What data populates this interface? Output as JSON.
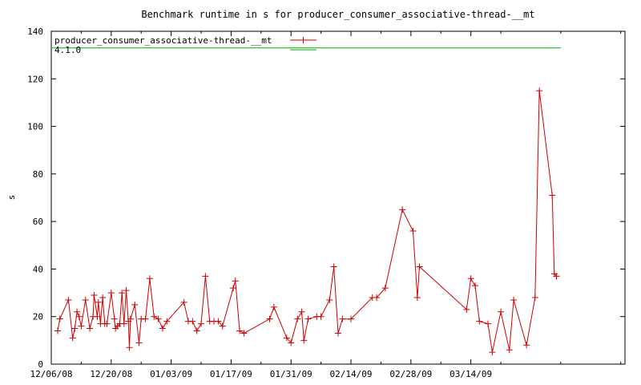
{
  "chart_data": {
    "type": "line",
    "title": "Benchmark runtime in s for producer_consumer_associative-thread-__mt",
    "xlabel": "",
    "ylabel": "s",
    "ylim": [
      0,
      140
    ],
    "yticks": [
      "0",
      "20",
      "40",
      "60",
      "80",
      "100",
      "120",
      "140"
    ],
    "xlim": [
      "2008-12-06",
      "2009-04-19"
    ],
    "xticks": [
      {
        "date": "2008-12-06",
        "label": "12/06/08"
      },
      {
        "date": "2008-12-20",
        "label": "12/20/08"
      },
      {
        "date": "2009-01-03",
        "label": "01/03/09"
      },
      {
        "date": "2009-01-17",
        "label": "01/17/09"
      },
      {
        "date": "2009-01-31",
        "label": "01/31/09"
      },
      {
        "date": "2009-02-14",
        "label": "02/14/09"
      },
      {
        "date": "2009-02-28",
        "label": "02/28/09"
      },
      {
        "date": "2009-03-14",
        "label": "03/14/09"
      }
    ],
    "grid": false,
    "legend": "top-left",
    "series": [
      {
        "name": "producer_consumer_associative-thread-__mt",
        "color": "#cc0000",
        "marker": "plus",
        "points": [
          [
            "2008-12-07T12:00",
            14
          ],
          [
            "2008-12-08",
            19
          ],
          [
            "2008-12-10",
            27
          ],
          [
            "2008-12-11",
            11
          ],
          [
            "2008-12-11T12:00",
            15
          ],
          [
            "2008-12-12",
            22
          ],
          [
            "2008-12-12T12:00",
            20
          ],
          [
            "2008-12-13",
            16
          ],
          [
            "2008-12-14",
            27
          ],
          [
            "2008-12-15",
            15
          ],
          [
            "2008-12-15T18:00",
            20
          ],
          [
            "2008-12-16",
            29
          ],
          [
            "2008-12-16T18:00",
            20
          ],
          [
            "2008-12-17",
            26
          ],
          [
            "2008-12-17T12:00",
            17
          ],
          [
            "2008-12-18",
            28
          ],
          [
            "2008-12-18T12:00",
            17
          ],
          [
            "2008-12-19",
            17
          ],
          [
            "2008-12-20",
            30
          ],
          [
            "2008-12-20T18:00",
            19
          ],
          [
            "2008-12-21",
            15
          ],
          [
            "2008-12-21T12:00",
            16
          ],
          [
            "2008-12-22",
            17
          ],
          [
            "2008-12-22T12:00",
            30
          ],
          [
            "2008-12-23",
            17
          ],
          [
            "2008-12-23T12:00",
            31
          ],
          [
            "2008-12-24",
            18
          ],
          [
            "2008-12-24T06:00",
            7
          ],
          [
            "2008-12-24T12:00",
            19
          ],
          [
            "2008-12-25T12:00",
            25
          ],
          [
            "2008-12-26T12:00",
            9
          ],
          [
            "2008-12-27",
            19
          ],
          [
            "2008-12-28",
            19
          ],
          [
            "2008-12-29",
            36
          ],
          [
            "2008-12-30",
            20
          ],
          [
            "2008-12-31",
            19
          ],
          [
            "2009-01-01",
            15
          ],
          [
            "2009-01-02",
            18
          ],
          [
            "2009-01-06",
            26
          ],
          [
            "2009-01-07",
            18
          ],
          [
            "2009-01-08",
            18
          ],
          [
            "2009-01-09",
            14
          ],
          [
            "2009-01-10",
            17
          ],
          [
            "2009-01-11",
            37
          ],
          [
            "2009-01-12",
            18
          ],
          [
            "2009-01-13",
            18
          ],
          [
            "2009-01-14",
            18
          ],
          [
            "2009-01-15",
            16
          ],
          [
            "2009-01-17T12:00",
            32
          ],
          [
            "2009-01-18",
            35
          ],
          [
            "2009-01-19",
            14
          ],
          [
            "2009-01-20",
            13
          ],
          [
            "2009-01-26",
            19
          ],
          [
            "2009-01-27",
            24
          ],
          [
            "2009-01-30",
            11
          ],
          [
            "2009-01-31",
            9
          ],
          [
            "2009-02-01T12:00",
            19
          ],
          [
            "2009-02-02T12:00",
            22
          ],
          [
            "2009-02-03",
            10
          ],
          [
            "2009-02-04",
            19
          ],
          [
            "2009-02-06",
            20
          ],
          [
            "2009-02-07",
            20
          ],
          [
            "2009-02-09",
            27
          ],
          [
            "2009-02-10",
            41
          ],
          [
            "2009-02-11",
            13
          ],
          [
            "2009-02-12",
            19
          ],
          [
            "2009-02-14",
            19
          ],
          [
            "2009-02-19",
            28
          ],
          [
            "2009-02-20",
            28
          ],
          [
            "2009-02-22",
            32
          ],
          [
            "2009-02-26",
            65
          ],
          [
            "2009-02-28T12:00",
            56
          ],
          [
            "2009-03-01T12:00",
            28
          ],
          [
            "2009-03-02",
            41
          ],
          [
            "2009-03-13",
            23
          ],
          [
            "2009-03-14",
            36
          ],
          [
            "2009-03-15",
            33
          ],
          [
            "2009-03-16",
            18
          ],
          [
            "2009-03-18",
            17
          ],
          [
            "2009-03-19",
            5
          ],
          [
            "2009-03-21",
            22
          ],
          [
            "2009-03-23",
            6
          ],
          [
            "2009-03-24",
            27
          ],
          [
            "2009-03-27",
            8
          ],
          [
            "2009-03-29",
            28
          ],
          [
            "2009-03-30",
            115
          ],
          [
            "2009-04-02",
            71
          ],
          [
            "2009-04-02T12:00",
            38
          ],
          [
            "2009-04-03",
            37
          ]
        ]
      },
      {
        "name": "4.1.0",
        "color": "#00b000",
        "marker": "none",
        "points": [
          [
            "2008-12-06",
            133
          ],
          [
            "2009-04-04",
            133
          ]
        ]
      }
    ]
  }
}
